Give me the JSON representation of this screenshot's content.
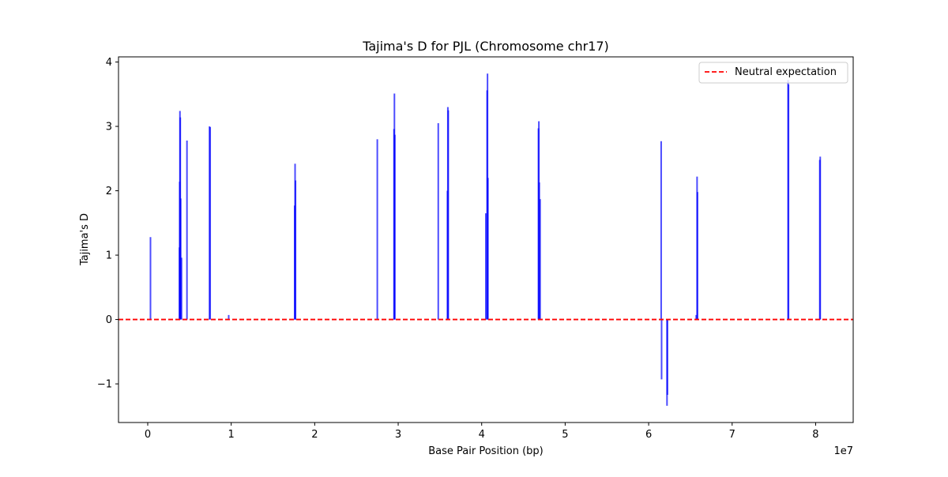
{
  "chart_data": {
    "type": "bar",
    "title": "Tajima's D for PJL (Chromosome chr17)",
    "xlabel": "Base Pair Position (bp)",
    "ylabel": "Tajima's D",
    "x_offset_label": "1e7",
    "xlim": [
      -3500000,
      84500000
    ],
    "ylim": [
      -1.6,
      4.08
    ],
    "x_ticks": [
      {
        "value": 0,
        "label": "0"
      },
      {
        "value": 10000000,
        "label": "1"
      },
      {
        "value": 20000000,
        "label": "2"
      },
      {
        "value": 30000000,
        "label": "3"
      },
      {
        "value": 40000000,
        "label": "4"
      },
      {
        "value": 50000000,
        "label": "5"
      },
      {
        "value": 60000000,
        "label": "6"
      },
      {
        "value": 70000000,
        "label": "7"
      },
      {
        "value": 80000000,
        "label": "8"
      }
    ],
    "y_ticks": [
      {
        "value": -1,
        "label": "−1"
      },
      {
        "value": 0,
        "label": "0"
      },
      {
        "value": 1,
        "label": "1"
      },
      {
        "value": 2,
        "label": "2"
      },
      {
        "value": 3,
        "label": "3"
      },
      {
        "value": 4,
        "label": "4"
      }
    ],
    "grid": false,
    "legend_position": "top-right",
    "legend": [
      {
        "label": "Neutral expectation",
        "color": "#ff0000",
        "style": "dashed"
      }
    ],
    "reference_line": {
      "y": 0,
      "label": "Neutral expectation",
      "color": "#ff0000",
      "style": "dashed"
    },
    "bar_color": "#0000ff",
    "points": [
      {
        "x": 330000,
        "y": 1.28
      },
      {
        "x": 3800000,
        "y": 1.12
      },
      {
        "x": 3830000,
        "y": 2.14
      },
      {
        "x": 3860000,
        "y": 3.24
      },
      {
        "x": 3900000,
        "y": 3.14
      },
      {
        "x": 3950000,
        "y": 1.88
      },
      {
        "x": 4050000,
        "y": 0.96
      },
      {
        "x": 4700000,
        "y": 2.78
      },
      {
        "x": 7400000,
        "y": 3.0
      },
      {
        "x": 7480000,
        "y": 2.99
      },
      {
        "x": 9700000,
        "y": 0.07
      },
      {
        "x": 17600000,
        "y": 1.77
      },
      {
        "x": 17650000,
        "y": 2.42
      },
      {
        "x": 17700000,
        "y": 2.16
      },
      {
        "x": 27500000,
        "y": 2.8
      },
      {
        "x": 29500000,
        "y": 2.96
      },
      {
        "x": 29550000,
        "y": 3.51
      },
      {
        "x": 29600000,
        "y": 2.87
      },
      {
        "x": 34800000,
        "y": 3.05
      },
      {
        "x": 35900000,
        "y": 2.0
      },
      {
        "x": 35950000,
        "y": 3.3
      },
      {
        "x": 36000000,
        "y": 3.25
      },
      {
        "x": 40500000,
        "y": 1.65
      },
      {
        "x": 40650000,
        "y": 3.56
      },
      {
        "x": 40700000,
        "y": 3.82
      },
      {
        "x": 40750000,
        "y": 2.2
      },
      {
        "x": 46800000,
        "y": 2.97
      },
      {
        "x": 46850000,
        "y": 3.08
      },
      {
        "x": 46900000,
        "y": 2.13
      },
      {
        "x": 47000000,
        "y": 1.87
      },
      {
        "x": 61500000,
        "y": 2.77
      },
      {
        "x": 61550000,
        "y": -0.93
      },
      {
        "x": 62200000,
        "y": -1.34
      },
      {
        "x": 62250000,
        "y": -1.17
      },
      {
        "x": 65700000,
        "y": 0.07
      },
      {
        "x": 65800000,
        "y": 2.22
      },
      {
        "x": 65850000,
        "y": 1.98
      },
      {
        "x": 76700000,
        "y": 3.72
      },
      {
        "x": 76750000,
        "y": 3.65
      },
      {
        "x": 80500000,
        "y": 2.48
      },
      {
        "x": 80550000,
        "y": 2.53
      }
    ]
  }
}
